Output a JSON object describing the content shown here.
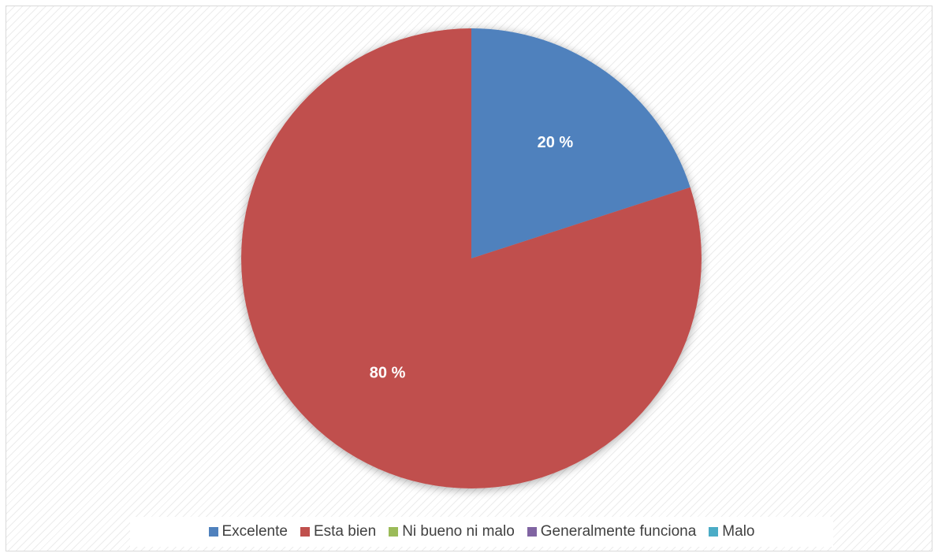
{
  "chart_data": {
    "type": "pie",
    "categories": [
      "Excelente",
      "Esta bien",
      "Ni bueno ni malo",
      "Generalmente funciona",
      "Malo"
    ],
    "values": [
      20,
      80,
      0,
      0,
      0
    ],
    "data_labels": [
      "20 %",
      "80 %",
      "",
      "",
      ""
    ],
    "colors": [
      "#4f81bd",
      "#c0504d",
      "#9bbb59",
      "#8064a2",
      "#4bacc6"
    ],
    "legend_position": "bottom",
    "start_angle": "top, clockwise"
  }
}
